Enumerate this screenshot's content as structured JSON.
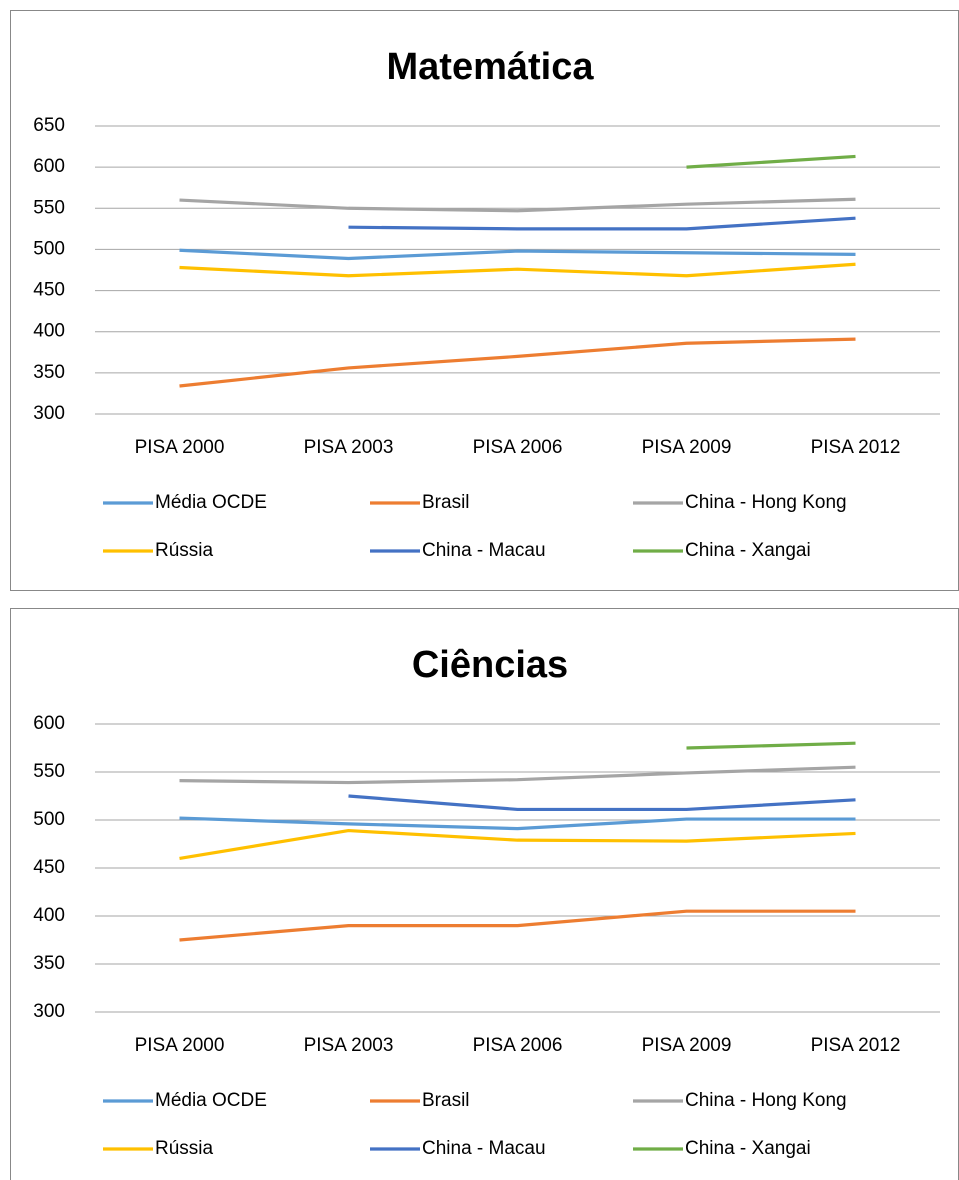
{
  "chart_data": [
    {
      "type": "line",
      "title": "Matemática",
      "categories": [
        "PISA 2000",
        "PISA 2003",
        "PISA 2006",
        "PISA 2009",
        "PISA 2012"
      ],
      "ylim": [
        300,
        650
      ],
      "yticks": [
        300,
        350,
        400,
        450,
        500,
        550,
        600,
        650
      ],
      "grid": true,
      "legend": "bottom",
      "series": [
        {
          "name": "Média OCDE",
          "color": "#5b9bd5",
          "values": [
            499,
            489,
            498,
            496,
            494
          ]
        },
        {
          "name": "Brasil",
          "color": "#ed7d31",
          "values": [
            334,
            356,
            370,
            386,
            391
          ]
        },
        {
          "name": "China - Hong Kong",
          "color": "#a5a5a5",
          "values": [
            560,
            550,
            547,
            555,
            561
          ]
        },
        {
          "name": "Rússia",
          "color": "#ffc000",
          "values": [
            478,
            468,
            476,
            468,
            482
          ]
        },
        {
          "name": "China - Macau",
          "color": "#4472c4",
          "values": [
            null,
            527,
            525,
            525,
            538
          ]
        },
        {
          "name": "China - Xangai",
          "color": "#70ad47",
          "values": [
            null,
            null,
            null,
            600,
            613
          ]
        }
      ]
    },
    {
      "type": "line",
      "title": "Ciências",
      "categories": [
        "PISA 2000",
        "PISA 2003",
        "PISA 2006",
        "PISA 2009",
        "PISA 2012"
      ],
      "ylim": [
        300,
        600
      ],
      "yticks": [
        300,
        350,
        400,
        450,
        500,
        550,
        600
      ],
      "grid": true,
      "legend": "bottom",
      "series": [
        {
          "name": "Média OCDE",
          "color": "#5b9bd5",
          "values": [
            502,
            496,
            491,
            501,
            501
          ]
        },
        {
          "name": "Brasil",
          "color": "#ed7d31",
          "values": [
            375,
            390,
            390,
            405,
            405
          ]
        },
        {
          "name": "China - Hong Kong",
          "color": "#a5a5a5",
          "values": [
            541,
            539,
            542,
            549,
            555
          ]
        },
        {
          "name": "Rússia",
          "color": "#ffc000",
          "values": [
            460,
            489,
            479,
            478,
            486
          ]
        },
        {
          "name": "China - Macau",
          "color": "#4472c4",
          "values": [
            null,
            525,
            511,
            511,
            521
          ]
        },
        {
          "name": "China - Xangai",
          "color": "#70ad47",
          "values": [
            null,
            null,
            null,
            575,
            580
          ]
        }
      ]
    }
  ]
}
